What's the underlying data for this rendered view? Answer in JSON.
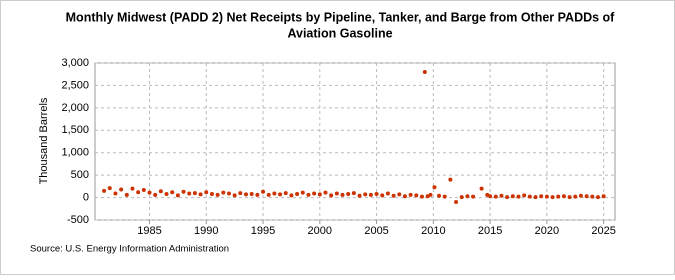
{
  "chart_data": {
    "type": "scatter",
    "title": [
      "Monthly Midwest (PADD 2) Net Receipts by Pipeline, Tanker, and Barge from Other PADDs of",
      "Aviation Gasoline"
    ],
    "y_label": "Thousand Barrels",
    "source": "Source: U.S. Energy Information Administration",
    "color": "#cc3300",
    "grid": true,
    "xlim": [
      1980.2,
      2026
    ],
    "ylim": [
      -500,
      3000
    ],
    "xticks": [
      1985,
      1990,
      1995,
      2000,
      2005,
      2010,
      2015,
      2020,
      2025
    ],
    "yticks": [
      -500,
      0,
      500,
      {
        "value": 1000,
        "label": "1,000"
      },
      {
        "value": 1500,
        "label": "1,500"
      },
      {
        "value": 2000,
        "label": "2,000"
      },
      {
        "value": 2500,
        "label": "2,500"
      },
      {
        "value": 3000,
        "label": "3,000"
      }
    ],
    "x": [
      1981,
      1981.5,
      1982,
      1982.5,
      1983,
      1983.5,
      1984,
      1984.5,
      1985,
      1985.5,
      1986,
      1986.5,
      1987,
      1987.5,
      1988,
      1988.5,
      1989,
      1989.5,
      1990,
      1990.5,
      1991,
      1991.5,
      1992,
      1992.5,
      1993,
      1993.5,
      1994,
      1994.5,
      1995,
      1995.5,
      1996,
      1996.5,
      1997,
      1997.5,
      1998,
      1998.5,
      1999,
      1999.5,
      2000,
      2000.5,
      2001,
      2001.5,
      2002,
      2002.5,
      2003,
      2003.5,
      2004,
      2004.5,
      2005,
      2005.5,
      2006,
      2006.5,
      2007,
      2007.5,
      2008,
      2008.5,
      2009,
      2009.25,
      2009.5,
      2009.75,
      2010.1,
      2010.5,
      2011,
      2011.5,
      2012,
      2012.5,
      2013,
      2013.5,
      2014.25,
      2014.75,
      2015,
      2015.5,
      2016,
      2016.5,
      2017,
      2017.5,
      2018,
      2018.5,
      2019,
      2019.5,
      2020,
      2020.5,
      2021,
      2021.5,
      2022,
      2022.5,
      2023,
      2023.5,
      2024,
      2024.5,
      2025
    ],
    "values": [
      150,
      210,
      90,
      180,
      60,
      200,
      120,
      170,
      110,
      60,
      140,
      80,
      120,
      50,
      130,
      90,
      100,
      70,
      120,
      80,
      60,
      110,
      90,
      50,
      100,
      70,
      80,
      60,
      130,
      60,
      90,
      70,
      100,
      50,
      80,
      110,
      60,
      90,
      70,
      110,
      50,
      90,
      60,
      80,
      100,
      40,
      70,
      60,
      80,
      50,
      90,
      40,
      70,
      30,
      60,
      50,
      20,
      2800,
      30,
      60,
      230,
      40,
      20,
      400,
      -100,
      10,
      30,
      20,
      200,
      60,
      30,
      20,
      40,
      10,
      30,
      20,
      50,
      20,
      10,
      30,
      20,
      10,
      20,
      30,
      10,
      20,
      40,
      30,
      20,
      10,
      30
    ]
  }
}
